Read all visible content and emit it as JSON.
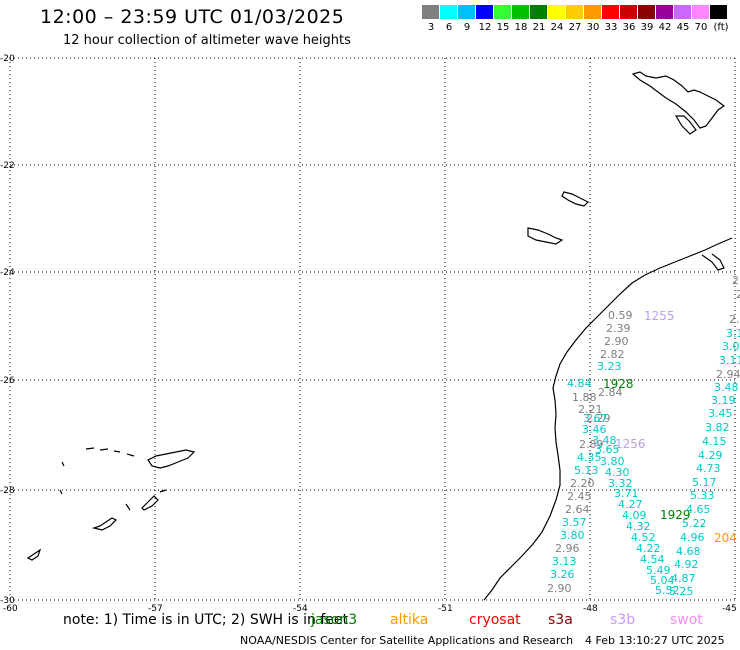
{
  "title": "12:00 – 23:59 UTC 01/03/2025",
  "subtitle": "12 hour collection of altimeter wave heights",
  "color_scale": {
    "unit": "(ft)",
    "swatches": [
      "#7f7f7f",
      "#00ffff",
      "#00bfff",
      "#0000ff",
      "#33ff33",
      "#00c000",
      "#008000",
      "#ffff00",
      "#ffcc00",
      "#ff9900",
      "#ff0000",
      "#cc0000",
      "#8b0000",
      "#990099",
      "#cc66ff",
      "#ff88ff",
      "#000000"
    ],
    "labels": [
      "3",
      "6",
      "9",
      "12",
      "15",
      "18",
      "21",
      "24",
      "27",
      "30",
      "33",
      "36",
      "39",
      "42",
      "45",
      "70"
    ]
  },
  "map": {
    "lon_range": [
      -60,
      -45
    ],
    "lat_range": [
      -30,
      -20
    ],
    "lat_ticks": [
      "-20",
      "-22",
      "-24",
      "-26",
      "-28",
      "-30"
    ],
    "lon_ticks": [
      "-60",
      "-57",
      "-54",
      "-51",
      "-48",
      "-45"
    ]
  },
  "track_labels": [
    {
      "text": "1255",
      "color": "#b9a0e6"
    },
    {
      "text": "1928",
      "color": "#008000"
    },
    {
      "text": "1256",
      "color": "#b9a0e6"
    },
    {
      "text": "1929",
      "color": "#008000"
    },
    {
      "text": "204",
      "color": "#ff9900"
    }
  ],
  "observations": {
    "gray": [
      "0.59",
      "2.39",
      "2.90",
      "2.82",
      "2.84",
      "1.88",
      "2.21",
      "2.29",
      "2.89",
      "2.20",
      "2.45",
      "2.64",
      "2.96",
      "2.90",
      "2.94",
      "2.9",
      "2.8",
      "2."
    ],
    "cyan": [
      "3.23",
      "4.84",
      "3.67",
      "3.46",
      "3.48",
      "3.65",
      "4.35",
      "3.80",
      "5.13",
      "4.30",
      "3.32",
      "3.71",
      "4.27",
      "4.09",
      "4.32",
      "4.52",
      "4.22",
      "4.54",
      "5.49",
      "5.04",
      "5.52",
      "5.25",
      "4.87",
      "4.92",
      "4.68",
      "4.96",
      "5.22",
      "4.65",
      "5.33",
      "5.17",
      "4.73",
      "4.29",
      "4.15",
      "3.82",
      "3.45",
      "3.19",
      "3.48",
      "3.11",
      "3.07",
      "3.1",
      "3.57",
      "3.80",
      "3.13",
      "3.26"
    ]
  },
  "note": "note: 1) Time is in UTC; 2) SWH is in feet",
  "legend": [
    {
      "label": "jason3",
      "color": "#008000"
    },
    {
      "label": "altika",
      "color": "#ff9900"
    },
    {
      "label": "cryosat",
      "color": "#ff0000"
    },
    {
      "label": "s3a",
      "color": "#8b0000"
    },
    {
      "label": "s3b",
      "color": "#cc99ff"
    },
    {
      "label": "swot",
      "color": "#ff88ff"
    }
  ],
  "footer": "NOAA/NESDIS Center for Satellite Applications and Research",
  "footer_time": "4 Feb 13:10:27 UTC 2025"
}
